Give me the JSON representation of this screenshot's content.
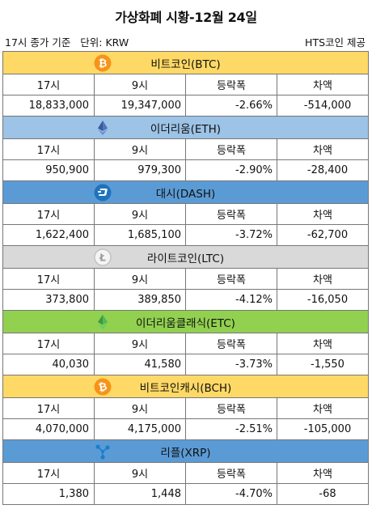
{
  "title": "가상화폐 시황-12월 24일",
  "meta_left": "17시 종가 기준   단위: KRW",
  "meta_right": "HTS코인 제공",
  "columns": [
    "17시",
    "9시",
    "등락폭",
    "차액"
  ],
  "coins": [
    {
      "name": "비트코인(BTC)",
      "color": "#ffd966",
      "icon": "bitcoin-icon",
      "icon_color": "#f7931a",
      "values": [
        "18,833,000",
        "19,347,000",
        "-2.66%",
        "-514,000"
      ]
    },
    {
      "name": "이더리움(ETH)",
      "color": "#9dc3e6",
      "icon": "ethereum-icon",
      "icon_color": "#9dc3e6",
      "values": [
        "950,900",
        "979,300",
        "-2.90%",
        "-28,400"
      ]
    },
    {
      "name": "대시(DASH)",
      "color": "#5b9bd5",
      "icon": "dash-icon",
      "icon_color": "#1e73be",
      "values": [
        "1,622,400",
        "1,685,100",
        "-3.72%",
        "-62,700"
      ]
    },
    {
      "name": "라이트코인(LTC)",
      "color": "#d9d9d9",
      "icon": "litecoin-icon",
      "icon_color": "#bcbcbc",
      "values": [
        "373,800",
        "389,850",
        "-4.12%",
        "-16,050"
      ]
    },
    {
      "name": "이더리움클래식(ETC)",
      "color": "#92d050",
      "icon": "ethereum-classic-icon",
      "icon_color": "#92d050",
      "values": [
        "40,030",
        "41,580",
        "-3.73%",
        "-1,550"
      ]
    },
    {
      "name": "비트코인캐시(BCH)",
      "color": "#ffd966",
      "icon": "bitcoin-cash-icon",
      "icon_color": "#f7931a",
      "values": [
        "4,070,000",
        "4,175,000",
        "-2.51%",
        "-105,000"
      ]
    },
    {
      "name": "리플(XRP)",
      "color": "#5b9bd5",
      "icon": "ripple-icon",
      "icon_color": "#5b9bd5",
      "values": [
        "1,380",
        "1,448",
        "-4.70%",
        "-68"
      ]
    }
  ]
}
